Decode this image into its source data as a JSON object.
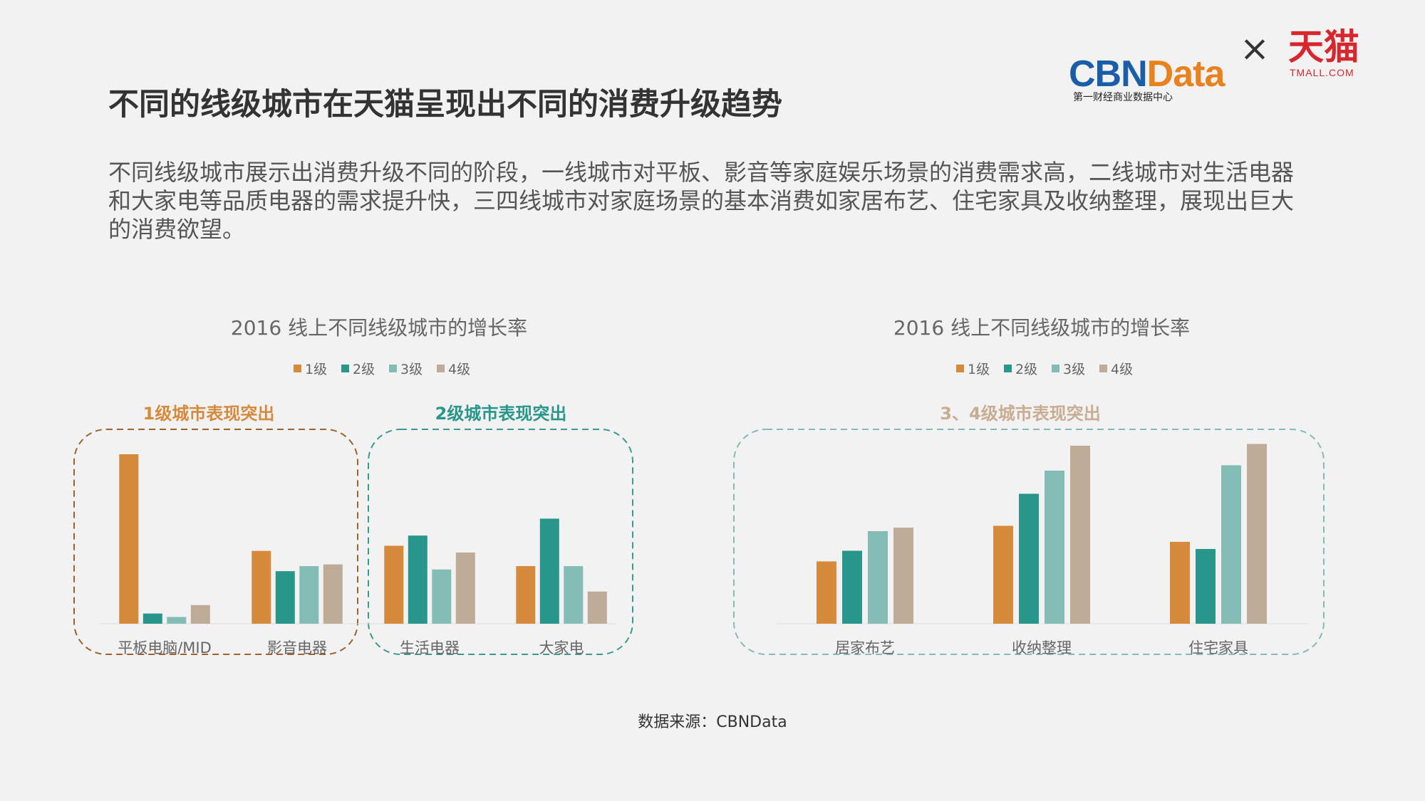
{
  "page": {
    "title": "不同的线级城市在天猫呈现出不同的消费升级趋势",
    "intro": "不同线级城市展示出消费升级不同的阶段，一线城市对平板、影音等家庭娱乐场景的消费需求高，二线城市对生活电器和大家电等品质电器的需求提升快，三四线城市对家庭场景的基本消费如家居布艺、住宅家具及收纳整理，展现出巨大的消费欲望。",
    "source": "数据来源：CBNData"
  },
  "logos": {
    "cbn": {
      "part1": "CBN",
      "part2": "Data",
      "subtitle": "第一财经商业数据中心"
    },
    "times": "×",
    "tmall": {
      "cn": "天猫",
      "en": "TMALL.COM"
    }
  },
  "colors": {
    "tier1": "#d68a3c",
    "tier2": "#28968a",
    "tier3": "#82bcb5",
    "tier4": "#beab98",
    "cbn_blue": "#1a5da9",
    "cbn_orange": "#e8821f",
    "highlight_brown": "#a0612c",
    "highlight_teal": "#3a9a8f",
    "highlight_light": "#c8ad92",
    "tmall_red": "#d7262e"
  },
  "chart_data": [
    {
      "type": "bar",
      "title": "2016 线上不同线级城市的增长率",
      "legend": [
        "1级",
        "2级",
        "3级",
        "4级"
      ],
      "categories": [
        "平板电脑/MID",
        "影音电器",
        "生活电器",
        "大家电"
      ],
      "series": [
        {
          "name": "1级",
          "values": [
            100,
            43,
            46,
            34
          ]
        },
        {
          "name": "2级",
          "values": [
            6,
            31,
            52,
            62
          ]
        },
        {
          "name": "3级",
          "values": [
            4,
            34,
            32,
            34
          ]
        },
        {
          "name": "4级",
          "values": [
            11,
            35,
            42,
            19
          ]
        }
      ],
      "ylim": [
        0,
        100
      ],
      "highlights": [
        {
          "label": "1级城市表现突出",
          "color": "#d68a3c",
          "box": "#a0612c"
        },
        {
          "label": "2级城市表现突出",
          "color": "#28968a",
          "box": "#3a9a8f"
        }
      ]
    },
    {
      "type": "bar",
      "title": "2016 线上不同线级城市的增长率",
      "legend": [
        "1级",
        "2级",
        "3级",
        "4级"
      ],
      "categories": [
        "居家布艺",
        "收纳整理",
        "住宅家具"
      ],
      "series": [
        {
          "name": "1级",
          "values": [
            35,
            55,
            46
          ]
        },
        {
          "name": "2级",
          "values": [
            41,
            73,
            42
          ]
        },
        {
          "name": "3级",
          "values": [
            52,
            86,
            89
          ]
        },
        {
          "name": "4级",
          "values": [
            54,
            100,
            101
          ]
        }
      ],
      "ylim": [
        0,
        100
      ],
      "highlights": [
        {
          "label": "3、4级城市表现突出",
          "color": "#c8ad92",
          "box": "#82bcb5"
        }
      ]
    }
  ]
}
